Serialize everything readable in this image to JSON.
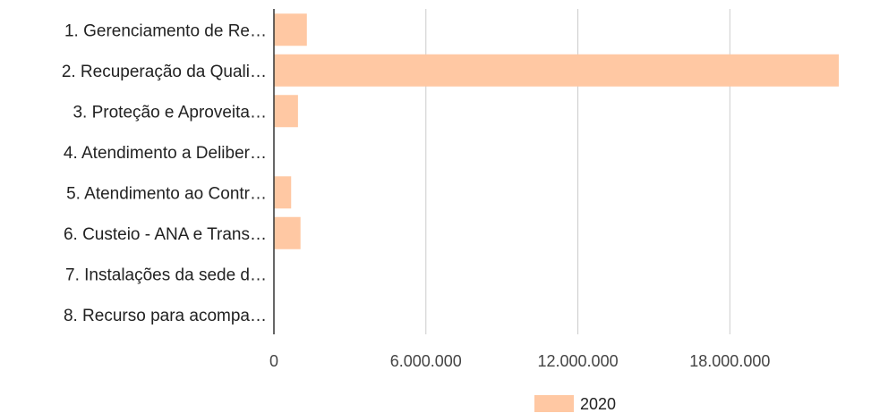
{
  "chart_data": {
    "type": "bar",
    "orientation": "horizontal",
    "categories": [
      "1. Gerenciamento de Re…",
      "2. Recuperação da Quali…",
      "3. Proteção e Aproveita…",
      "4. Atendimento a Deliber…",
      "5. Atendimento ao Contr…",
      "6. Custeio - ANA e Trans…",
      "7. Instalações da sede d…",
      "8. Recurso para acompa…"
    ],
    "series": [
      {
        "name": "2020",
        "color": "#ffc8a3",
        "values": [
          1300000,
          22300000,
          950000,
          0,
          680000,
          1050000,
          0,
          0
        ]
      }
    ],
    "x_ticks": [
      0,
      6000000,
      12000000,
      18000000
    ],
    "x_tick_labels": [
      "0",
      "6.000.000",
      "12.000.000",
      "18.000.000"
    ],
    "xlim": [
      0,
      22300000
    ],
    "grid": true,
    "legend_position": "bottom"
  }
}
